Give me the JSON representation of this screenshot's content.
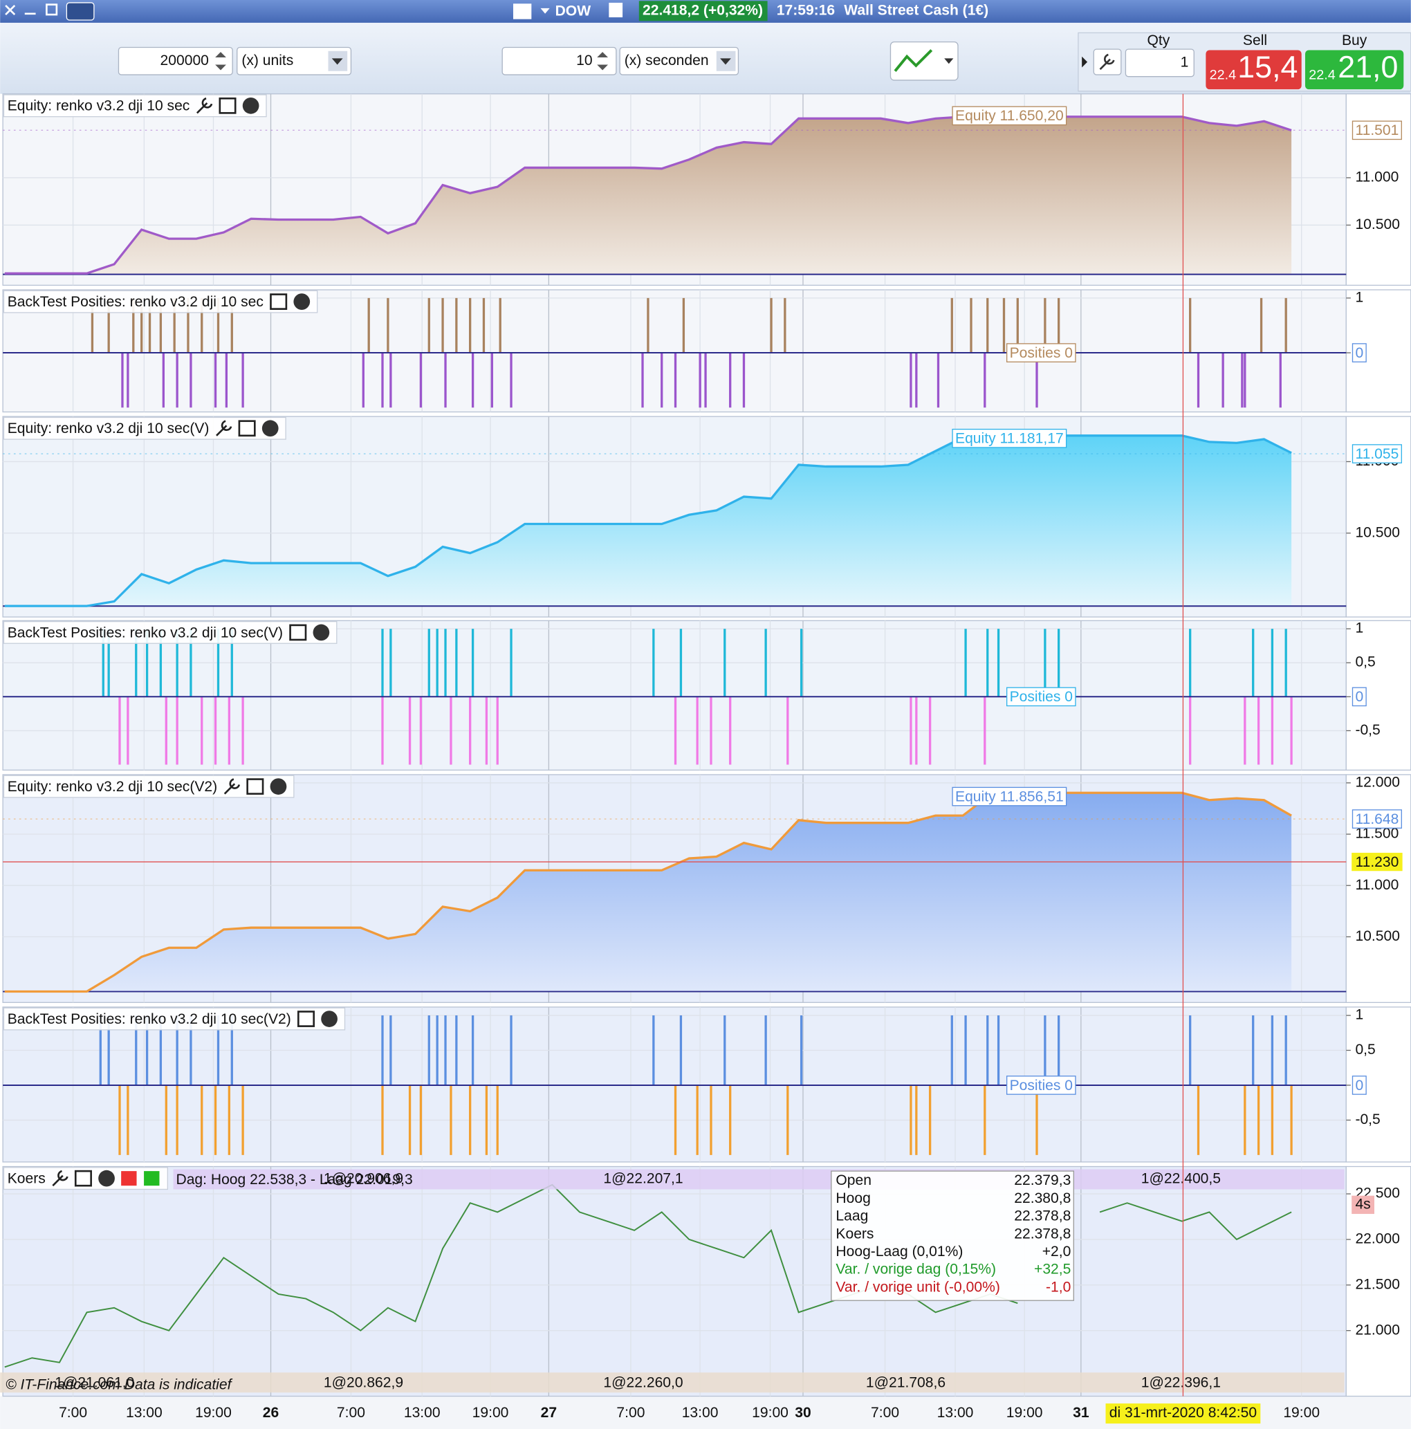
{
  "window": {
    "title": "DOW",
    "price": "22.418,2 (+0,32%)",
    "time": "17:59:16",
    "instrument": "Wall Street Cash (1€)"
  },
  "toolbar": {
    "quantity": "200000",
    "quantity_unit": "(x) units",
    "interval": "10",
    "interval_unit": "(x) seconden",
    "qty_label": "Qty",
    "qty": "1",
    "sell_label": "Sell",
    "sell_prefix": "22.4",
    "sell_price": "15,4",
    "buy_label": "Buy",
    "buy_prefix": "22.4",
    "buy_price": "21,0"
  },
  "xlim": [
    0,
    49
  ],
  "panels": [
    {
      "type": "equity",
      "title": "Equity: renko v3.2 dji 10 sec",
      "background": "#f4f6fa",
      "ylim": [
        9865,
        11885
      ],
      "yticks": [
        {
          "value": 10500,
          "label": "10.500"
        },
        {
          "value": 11000,
          "label": "11.000"
        }
      ],
      "last": {
        "value": 11501,
        "label": "11.501"
      },
      "tag": "Equity 11.650,20",
      "line_color": "#a05ac8",
      "tag_color": "#b48a5e",
      "fill_top": "#c3a48a",
      "fill_bottom": "#f2ebe4",
      "values": [
        9990,
        9990,
        9990,
        9990,
        10087,
        10452,
        10356,
        10356,
        10423,
        10567,
        10558,
        10558,
        10558,
        10587,
        10413,
        10519,
        10923,
        10837,
        10904,
        11106,
        11106,
        11106,
        11106,
        11106,
        11096,
        11192,
        11317,
        11375,
        11356,
        11625,
        11625,
        11625,
        11625,
        11577,
        11625,
        11644,
        11644,
        11644,
        11644,
        11644,
        11644,
        11644,
        11644,
        11644,
        11577,
        11548,
        11596,
        11500
      ]
    },
    {
      "type": "positions",
      "title": "BackTest Posities: renko v3.2 dji 10 sec",
      "background": "#f4f6fa",
      "ylim": [
        -1.08,
        1.15
      ],
      "yticks": [
        1
      ],
      "last": 0,
      "tag": "Posities 0",
      "tag_color": "#b48a5e",
      "series": [
        {
          "color": "#a8825e",
          "x": [
            3.2,
            3.8,
            4.7,
            5.0,
            5.3,
            5.7,
            6.2,
            6.7,
            7.2,
            7.8,
            8.3,
            13.3,
            14.0,
            15.5,
            16.0,
            16.5,
            17.0,
            17.5,
            18.1,
            23.5,
            24.8,
            28.0,
            28.5,
            34.6,
            35.3,
            35.9,
            36.5,
            37.0,
            38.0,
            38.5,
            43.3,
            45.9,
            46.8
          ],
          "values": [
            1,
            1,
            1,
            1,
            1,
            1,
            1,
            1,
            1,
            1,
            1,
            1,
            1,
            1,
            1,
            1,
            1,
            1,
            1,
            1,
            1,
            1,
            1,
            1,
            1,
            1,
            1,
            1,
            1,
            1,
            1,
            1,
            1
          ]
        },
        {
          "color": "#9b55cc",
          "x": [
            4.3,
            4.5,
            5.8,
            6.3,
            6.8,
            7.7,
            8.1,
            8.7,
            13.1,
            13.8,
            14.1,
            15.2,
            16.1,
            17.1,
            17.8,
            18.5,
            23.3,
            24.0,
            24.5,
            25.4,
            25.6,
            26.5,
            27.0,
            33.1,
            33.3,
            34.1,
            35.8,
            37.7,
            43.6,
            44.5,
            45.2,
            45.3,
            46.6
          ],
          "values": [
            -1,
            -1,
            -1,
            -1,
            -1,
            -1,
            -1,
            -1,
            -1,
            -1,
            -1,
            -1,
            -1,
            -1,
            -1,
            -1,
            -1,
            -1,
            -1,
            -1,
            -1,
            -1,
            -1,
            -1,
            -1,
            -1,
            -1,
            -1,
            -1,
            -1,
            -1,
            -1,
            -1
          ]
        }
      ]
    },
    {
      "type": "equity",
      "title": "Equity: renko v3.2 dji 10 sec(V)",
      "background": "#eef3fa",
      "ylim": [
        9913,
        11316
      ],
      "yticks": [
        {
          "value": 10500,
          "label": "10.500"
        },
        {
          "value": 11000,
          "label": "11.000"
        }
      ],
      "last": {
        "value": 11055,
        "label": "11.055"
      },
      "tag": "Equity 11.181,17",
      "line_color": "#2fb2ea",
      "tag_color": "#2fb2ea",
      "fill_top": "#5ed3f7",
      "fill_bottom": "#e4f6fc",
      "values": [
        9990,
        9990,
        9990,
        9990,
        10022,
        10213,
        10149,
        10245,
        10309,
        10290,
        10290,
        10290,
        10290,
        10290,
        10200,
        10264,
        10404,
        10360,
        10436,
        10564,
        10564,
        10564,
        10564,
        10564,
        10564,
        10628,
        10659,
        10755,
        10742,
        10978,
        10966,
        10966,
        10966,
        10978,
        11074,
        11170,
        11182,
        11182,
        11182,
        11182,
        11182,
        11182,
        11182,
        11182,
        11138,
        11131,
        11157,
        11061
      ]
    },
    {
      "type": "positions",
      "title": "BackTest Posities: renko v3.2 dji 10 sec(V)",
      "background": "#eef3fa",
      "ylim": [
        -1.08,
        1.12
      ],
      "yticks": [
        1,
        {
          "value": 0.5,
          "label": "0,5"
        },
        {
          "value": -0.5,
          "label": "-0,5"
        }
      ],
      "last": 0,
      "tag": "Posities 0",
      "tag_color": "#2fb2ea",
      "series": [
        {
          "color": "#1fb8d8",
          "x": [
            3.6,
            3.8,
            4.8,
            5.2,
            5.7,
            6.3,
            6.8,
            7.8,
            8.3,
            13.8,
            14.1,
            15.5,
            15.8,
            16.1,
            16.5,
            17.1,
            18.5,
            23.7,
            24.7,
            26.3,
            27.8,
            29.1,
            35.1,
            35.9,
            36.3,
            38.0,
            38.5,
            43.3,
            45.6,
            46.3,
            46.8
          ],
          "values": [
            1,
            1,
            1,
            1,
            1,
            1,
            1,
            1,
            1,
            1,
            1,
            1,
            1,
            1,
            1,
            1,
            1,
            1,
            1,
            1,
            1,
            1,
            1,
            1,
            1,
            1,
            1,
            1,
            1,
            1,
            1
          ]
        },
        {
          "color": "#f07ae6",
          "x": [
            4.2,
            4.5,
            5.9,
            6.3,
            7.2,
            7.7,
            8.2,
            8.7,
            13.8,
            14.8,
            15.2,
            16.3,
            17.0,
            17.6,
            18.0,
            24.5,
            25.3,
            25.8,
            26.5,
            28.6,
            33.1,
            33.3,
            33.8,
            35.8,
            43.3,
            45.3,
            45.8,
            46.3,
            47.0
          ],
          "values": [
            -1,
            -1,
            -1,
            -1,
            -1,
            -1,
            -1,
            -1,
            -1,
            -1,
            -1,
            -1,
            -1,
            -1,
            -1,
            -1,
            -1,
            -1,
            -1,
            -1,
            -1,
            -1,
            -1,
            -1,
            -1,
            -1,
            -1,
            -1,
            -1
          ]
        }
      ]
    },
    {
      "type": "equity",
      "title": "Equity: renko v3.2 dji 10 sec(V2)",
      "background": "#e8eefa",
      "ylim": [
        9860,
        12080
      ],
      "yticks": [
        {
          "value": 10500,
          "label": "10.500"
        },
        {
          "value": 11000,
          "label": "11.000"
        },
        {
          "value": 11500,
          "label": "11.500"
        },
        {
          "value": 12000,
          "label": "12.000"
        }
      ],
      "last": {
        "value": 11648,
        "label": "11.648"
      },
      "tag": "Equity 11.856,51",
      "line_color": "#f09a3a",
      "tag_color": "#5b8fe0",
      "fill_top": "#86acf0",
      "fill_bottom": "#dfe8fb",
      "cursor": {
        "value": 11230,
        "label": "11.230"
      },
      "values": [
        9967,
        9967,
        9967,
        9967,
        10127,
        10305,
        10393,
        10393,
        10571,
        10589,
        10589,
        10589,
        10589,
        10589,
        10482,
        10527,
        10793,
        10749,
        10882,
        11148,
        11148,
        11148,
        11148,
        11148,
        11148,
        11264,
        11281,
        11415,
        11352,
        11637,
        11610,
        11610,
        11610,
        11610,
        11681,
        11681,
        11885,
        11903,
        11903,
        11903,
        11903,
        11903,
        11903,
        11903,
        11832,
        11850,
        11832,
        11681
      ]
    },
    {
      "type": "positions",
      "title": "BackTest Posities: renko v3.2 dji 10 sec(V2)",
      "background": "#e8eefa",
      "ylim": [
        -1.1,
        1.12
      ],
      "yticks": [
        1,
        {
          "value": 0.5,
          "label": "0,5"
        },
        {
          "value": -0.5,
          "label": "-0,5"
        }
      ],
      "last": 0,
      "tag": "Posities 0",
      "tag_color": "#5b8fe0",
      "series": [
        {
          "color": "#5b8fe0",
          "x": [
            3.5,
            3.8,
            4.8,
            5.2,
            5.7,
            6.3,
            6.8,
            7.8,
            8.3,
            13.8,
            14.1,
            15.5,
            15.8,
            16.1,
            16.5,
            17.1,
            18.5,
            23.7,
            24.7,
            26.3,
            27.8,
            29.1,
            34.6,
            35.1,
            35.9,
            36.3,
            38.0,
            38.5,
            43.3,
            45.6,
            46.3,
            46.8
          ],
          "values": [
            1,
            1,
            1,
            1,
            1,
            1,
            1,
            1,
            1,
            1,
            1,
            1,
            1,
            1,
            1,
            1,
            1,
            1,
            1,
            1,
            1,
            1,
            1,
            1,
            1,
            1,
            1,
            1,
            1,
            1,
            1,
            1
          ]
        },
        {
          "color": "#f2a030",
          "x": [
            4.2,
            4.5,
            5.9,
            6.3,
            7.2,
            7.7,
            8.2,
            8.7,
            13.8,
            14.8,
            15.2,
            16.3,
            17.0,
            17.6,
            18.0,
            24.5,
            25.3,
            25.8,
            26.5,
            28.6,
            33.1,
            33.3,
            33.8,
            35.8,
            37.7,
            43.6,
            45.3,
            45.8,
            46.3,
            47.0
          ],
          "values": [
            -1,
            -1,
            -1,
            -1,
            -1,
            -1,
            -1,
            -1,
            -1,
            -1,
            -1,
            -1,
            -1,
            -1,
            -1,
            -1,
            -1,
            -1,
            -1,
            -1,
            -1,
            -1,
            -1,
            -1,
            -1,
            -1,
            -1,
            -1,
            -1,
            -1
          ]
        }
      ]
    },
    {
      "type": "price",
      "title": "Koers",
      "info": "Dag: Hoog 22.538,3 - Laag 22.019,3",
      "background": "#e6ecfa",
      "ylim": [
        20280,
        22800
      ],
      "yticks": [
        {
          "value": 21000,
          "label": "21.000"
        },
        {
          "value": 21500,
          "label": "21.500"
        },
        {
          "value": 22000,
          "label": "22.000"
        },
        {
          "value": 22500,
          "label": "22.500"
        }
      ],
      "line_color": "#3f8f3f",
      "countdown": "4s",
      "orders_top": [
        "1@20.906,9",
        "1@22.207,1",
        "1@22.400,5"
      ],
      "orders_bottom": [
        "1@21.061,0",
        "1@20.862,9",
        "1@22.260,0",
        "1@21.708,6",
        "1@22.396,1"
      ],
      "note": "© IT-Finance.com Data is indicatief",
      "tooltip": [
        {
          "label": "Open",
          "value": "22.379,3",
          "color": "#111111"
        },
        {
          "label": "Hoog",
          "value": "22.380,8",
          "color": "#111111"
        },
        {
          "label": "Laag",
          "value": "22.378,8",
          "color": "#111111"
        },
        {
          "label": "Koers",
          "value": "22.378,8",
          "color": "#111111"
        },
        {
          "label": "Hoog-Laag (0,01%)",
          "value": "+2,0",
          "color": "#111111"
        },
        {
          "label": "Var. / vorige dag (0,15%)",
          "value": "+32,5",
          "color": "#1f9a2a"
        },
        {
          "label": "Var. / vorige unit (-0,00%)",
          "value": "-1,0",
          "color": "#c4161c"
        }
      ],
      "values": [
        20600,
        20700,
        20650,
        21200,
        21250,
        21100,
        21000,
        21400,
        21800,
        21600,
        21400,
        21350,
        21200,
        21000,
        21250,
        21100,
        21900,
        22400,
        22300,
        22450,
        22600,
        22300,
        22200,
        22100,
        22300,
        22000,
        21900,
        21800,
        22100,
        21200,
        21300,
        21400,
        21500,
        21400,
        21200,
        21300,
        21400,
        21300,
        null,
        null,
        22300,
        22400,
        22300,
        22200,
        22300,
        22000,
        22150,
        22300
      ]
    }
  ],
  "x_axis_labels": [
    "7:00",
    "13:00",
    "19:00",
    "26",
    "7:00",
    "13:00",
    "19:00",
    "27",
    "7:00",
    "13:00",
    "19:00",
    "30",
    "7:00",
    "13:00",
    "19:00",
    "31",
    "19:00"
  ],
  "cursor_date": "di 31-mrt-2020 8:42:50"
}
